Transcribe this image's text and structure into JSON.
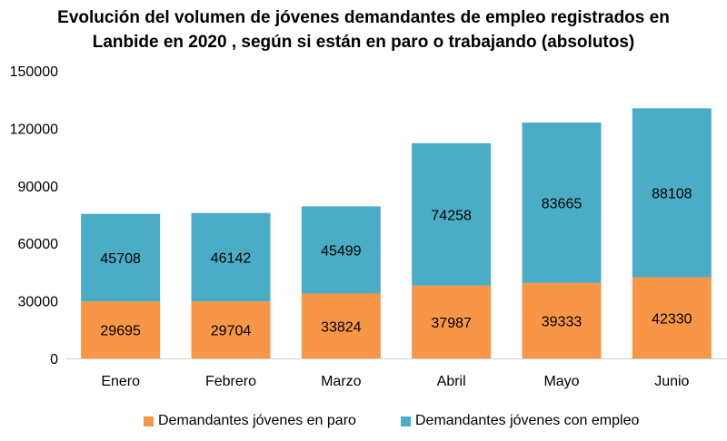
{
  "chart_data": {
    "type": "bar",
    "stacked": true,
    "title_lines": [
      "Evolución del volumen de jóvenes demandantes de empleo registrados en",
      "Lanbide en 2020 , según si están en paro o trabajando (absolutos)"
    ],
    "categories": [
      "Enero",
      "Febrero",
      "Marzo",
      "Abril",
      "Mayo",
      "Junio"
    ],
    "series": [
      {
        "name": "Demandantes jóvenes en paro",
        "color": "#F79646",
        "values": [
          29695,
          29704,
          33824,
          37987,
          39333,
          42330
        ]
      },
      {
        "name": "Demandantes jóvenes con empleo",
        "color": "#4BACC6",
        "values": [
          45708,
          46142,
          45499,
          74258,
          83665,
          88108
        ]
      }
    ],
    "ylim": [
      0,
      150000
    ],
    "yticks": [
      0,
      30000,
      60000,
      90000,
      120000,
      150000
    ],
    "grid": false,
    "legend_position": "bottom",
    "xlabel": "",
    "ylabel": ""
  }
}
